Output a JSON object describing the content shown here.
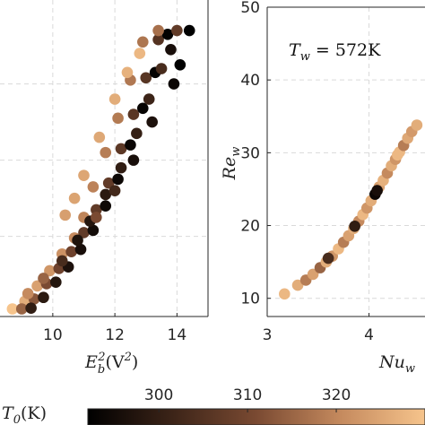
{
  "colors": {
    "colormap_start": "#000000",
    "colormap_mid": "#7a4a32",
    "colormap_end": "#f6c48c",
    "grid": "#d9d9d9",
    "axis": "#262626"
  },
  "chart_data": [
    {
      "type": "scatter",
      "xlabel_base": "E",
      "xlabel_sub": "b",
      "xlabel_sup": "2",
      "xlabel_unit": "(V",
      "xlabel_unit_sup": "2",
      "xlabel_unit_close": ")",
      "ylabel": "",
      "xlim": [
        8.3,
        15.0
      ],
      "ylim": [
        9.5,
        51
      ],
      "xticks": [
        "10",
        "12",
        "14"
      ],
      "xtick_values": [
        10,
        12,
        14
      ],
      "grid": true,
      "series": [
        {
          "values": [
            {
              "x": 8.7,
              "y": 10.5,
              "c": 1.0
            },
            {
              "x": 9.1,
              "y": 11.5,
              "c": 0.9
            },
            {
              "x": 9.5,
              "y": 13.5,
              "c": 0.85
            },
            {
              "x": 9.9,
              "y": 15.5,
              "c": 0.8
            },
            {
              "x": 10.3,
              "y": 17.7,
              "c": 0.78
            },
            {
              "x": 10.7,
              "y": 19.8,
              "c": 0.75
            },
            {
              "x": 11.0,
              "y": 22.5,
              "c": 0.73
            },
            {
              "x": 11.3,
              "y": 26.5,
              "c": 0.72
            },
            {
              "x": 11.7,
              "y": 31.0,
              "c": 0.7
            },
            {
              "x": 12.1,
              "y": 35.5,
              "c": 0.69
            },
            {
              "x": 12.5,
              "y": 40.5,
              "c": 0.68
            },
            {
              "x": 12.9,
              "y": 45.5,
              "c": 0.67
            },
            {
              "x": 9.0,
              "y": 10.5,
              "c": 0.6
            },
            {
              "x": 9.4,
              "y": 11.8,
              "c": 0.55
            },
            {
              "x": 9.8,
              "y": 13.8,
              "c": 0.5
            },
            {
              "x": 10.2,
              "y": 15.8,
              "c": 0.45
            },
            {
              "x": 10.6,
              "y": 18.0,
              "c": 0.45
            },
            {
              "x": 11.0,
              "y": 20.5,
              "c": 0.4
            },
            {
              "x": 11.4,
              "y": 23.5,
              "c": 0.4
            },
            {
              "x": 11.8,
              "y": 27.0,
              "c": 0.4
            },
            {
              "x": 12.2,
              "y": 31.5,
              "c": 0.38
            },
            {
              "x": 12.6,
              "y": 36.0,
              "c": 0.37
            },
            {
              "x": 13.0,
              "y": 40.8,
              "c": 0.36
            },
            {
              "x": 13.4,
              "y": 45.8,
              "c": 0.35
            },
            {
              "x": 9.3,
              "y": 10.6,
              "c": 0.2
            },
            {
              "x": 9.7,
              "y": 12.0,
              "c": 0.18
            },
            {
              "x": 10.1,
              "y": 14.0,
              "c": 0.15
            },
            {
              "x": 10.5,
              "y": 16.0,
              "c": 0.12
            },
            {
              "x": 10.9,
              "y": 18.3,
              "c": 0.1
            },
            {
              "x": 11.3,
              "y": 20.8,
              "c": 0.08
            },
            {
              "x": 11.7,
              "y": 24.0,
              "c": 0.06
            },
            {
              "x": 12.1,
              "y": 27.5,
              "c": 0.05
            },
            {
              "x": 12.5,
              "y": 32.0,
              "c": 0.04
            },
            {
              "x": 12.9,
              "y": 36.8,
              "c": 0.03
            },
            {
              "x": 13.3,
              "y": 41.5,
              "c": 0.02
            },
            {
              "x": 13.7,
              "y": 46.5,
              "c": 0.01
            },
            {
              "x": 13.4,
              "y": 47.0,
              "c": 0.65
            },
            {
              "x": 14.0,
              "y": 47.0,
              "c": 0.4
            },
            {
              "x": 14.4,
              "y": 47.0,
              "c": 0.0
            },
            {
              "x": 12.8,
              "y": 44.0,
              "c": 0.95
            },
            {
              "x": 12.4,
              "y": 41.5,
              "c": 0.92
            },
            {
              "x": 12.0,
              "y": 38.0,
              "c": 0.9
            },
            {
              "x": 11.5,
              "y": 33.0,
              "c": 0.88
            },
            {
              "x": 11.0,
              "y": 28.0,
              "c": 0.87
            },
            {
              "x": 10.7,
              "y": 25.0,
              "c": 0.86
            },
            {
              "x": 10.4,
              "y": 22.8,
              "c": 0.84
            },
            {
              "x": 13.8,
              "y": 44.5,
              "c": 0.1
            },
            {
              "x": 14.1,
              "y": 42.5,
              "c": 0.0
            },
            {
              "x": 13.5,
              "y": 42.0,
              "c": 0.3
            },
            {
              "x": 13.1,
              "y": 38.0,
              "c": 0.25
            },
            {
              "x": 12.7,
              "y": 33.5,
              "c": 0.22
            },
            {
              "x": 12.2,
              "y": 29.0,
              "c": 0.2
            },
            {
              "x": 11.7,
              "y": 25.5,
              "c": 0.18
            },
            {
              "x": 11.2,
              "y": 22.0,
              "c": 0.15
            },
            {
              "x": 10.8,
              "y": 19.5,
              "c": 0.13
            },
            {
              "x": 10.3,
              "y": 16.8,
              "c": 0.3
            },
            {
              "x": 9.7,
              "y": 14.5,
              "c": 0.6
            },
            {
              "x": 9.2,
              "y": 12.5,
              "c": 0.75
            },
            {
              "x": 13.9,
              "y": 40.0,
              "c": 0.05
            },
            {
              "x": 13.2,
              "y": 35.0,
              "c": 0.12
            },
            {
              "x": 12.6,
              "y": 30.0,
              "c": 0.1
            },
            {
              "x": 12.0,
              "y": 26.0,
              "c": 0.28
            },
            {
              "x": 11.4,
              "y": 22.5,
              "c": 0.5
            }
          ]
        }
      ]
    },
    {
      "type": "scatter",
      "annotation_left": "T",
      "annotation_sub": "w",
      "annotation_right": " = 572K",
      "xlabel_base": "Nu",
      "xlabel_sub": "w",
      "ylabel_base": "Re",
      "ylabel_sub": "w",
      "xlim": [
        3.0,
        4.55
      ],
      "ylim": [
        7.5,
        50
      ],
      "xticks": [
        "3",
        "4"
      ],
      "xtick_values": [
        3,
        4
      ],
      "yticks": [
        "10",
        "20",
        "30",
        "40",
        "50"
      ],
      "ytick_values": [
        10,
        20,
        30,
        40,
        50
      ],
      "grid": true,
      "series": [
        {
          "values": [
            {
              "x": 3.17,
              "y": 10.6,
              "c": 0.95
            },
            {
              "x": 3.3,
              "y": 11.8,
              "c": 0.9
            },
            {
              "x": 3.38,
              "y": 12.5,
              "c": 0.7
            },
            {
              "x": 3.45,
              "y": 13.3,
              "c": 0.85
            },
            {
              "x": 3.52,
              "y": 14.2,
              "c": 0.6
            },
            {
              "x": 3.58,
              "y": 15.0,
              "c": 0.9
            },
            {
              "x": 3.64,
              "y": 15.8,
              "c": 0.8
            },
            {
              "x": 3.7,
              "y": 16.8,
              "c": 0.95
            },
            {
              "x": 3.75,
              "y": 17.7,
              "c": 0.7
            },
            {
              "x": 3.8,
              "y": 18.6,
              "c": 0.85
            },
            {
              "x": 3.85,
              "y": 19.6,
              "c": 0.9
            },
            {
              "x": 3.9,
              "y": 20.6,
              "c": 0.75
            },
            {
              "x": 3.94,
              "y": 21.5,
              "c": 0.95
            },
            {
              "x": 3.98,
              "y": 22.4,
              "c": 0.8
            },
            {
              "x": 4.02,
              "y": 23.4,
              "c": 0.9
            },
            {
              "x": 4.06,
              "y": 24.3,
              "c": 0.05
            },
            {
              "x": 4.1,
              "y": 25.3,
              "c": 0.85
            },
            {
              "x": 4.14,
              "y": 26.2,
              "c": 0.92
            },
            {
              "x": 4.18,
              "y": 27.2,
              "c": 0.75
            },
            {
              "x": 4.22,
              "y": 28.2,
              "c": 0.9
            },
            {
              "x": 4.26,
              "y": 29.1,
              "c": 0.8
            },
            {
              "x": 4.3,
              "y": 30.1,
              "c": 0.95
            },
            {
              "x": 4.34,
              "y": 31.0,
              "c": 0.7
            },
            {
              "x": 4.38,
              "y": 32.0,
              "c": 0.88
            },
            {
              "x": 4.42,
              "y": 32.9,
              "c": 0.82
            },
            {
              "x": 4.47,
              "y": 33.8,
              "c": 0.9
            },
            {
              "x": 3.6,
              "y": 15.5,
              "c": 0.3
            },
            {
              "x": 3.86,
              "y": 19.9,
              "c": 0.2
            },
            {
              "x": 4.08,
              "y": 24.8,
              "c": 0.1
            },
            {
              "x": 4.28,
              "y": 29.7,
              "c": 0.95
            }
          ]
        }
      ]
    }
  ],
  "colorbar": {
    "label_base": "T",
    "label_sub": "0",
    "label_unit": "(K)",
    "ticks": [
      "300",
      "310",
      "320"
    ],
    "tick_values": [
      300,
      310,
      320
    ],
    "range": [
      292,
      330
    ]
  }
}
